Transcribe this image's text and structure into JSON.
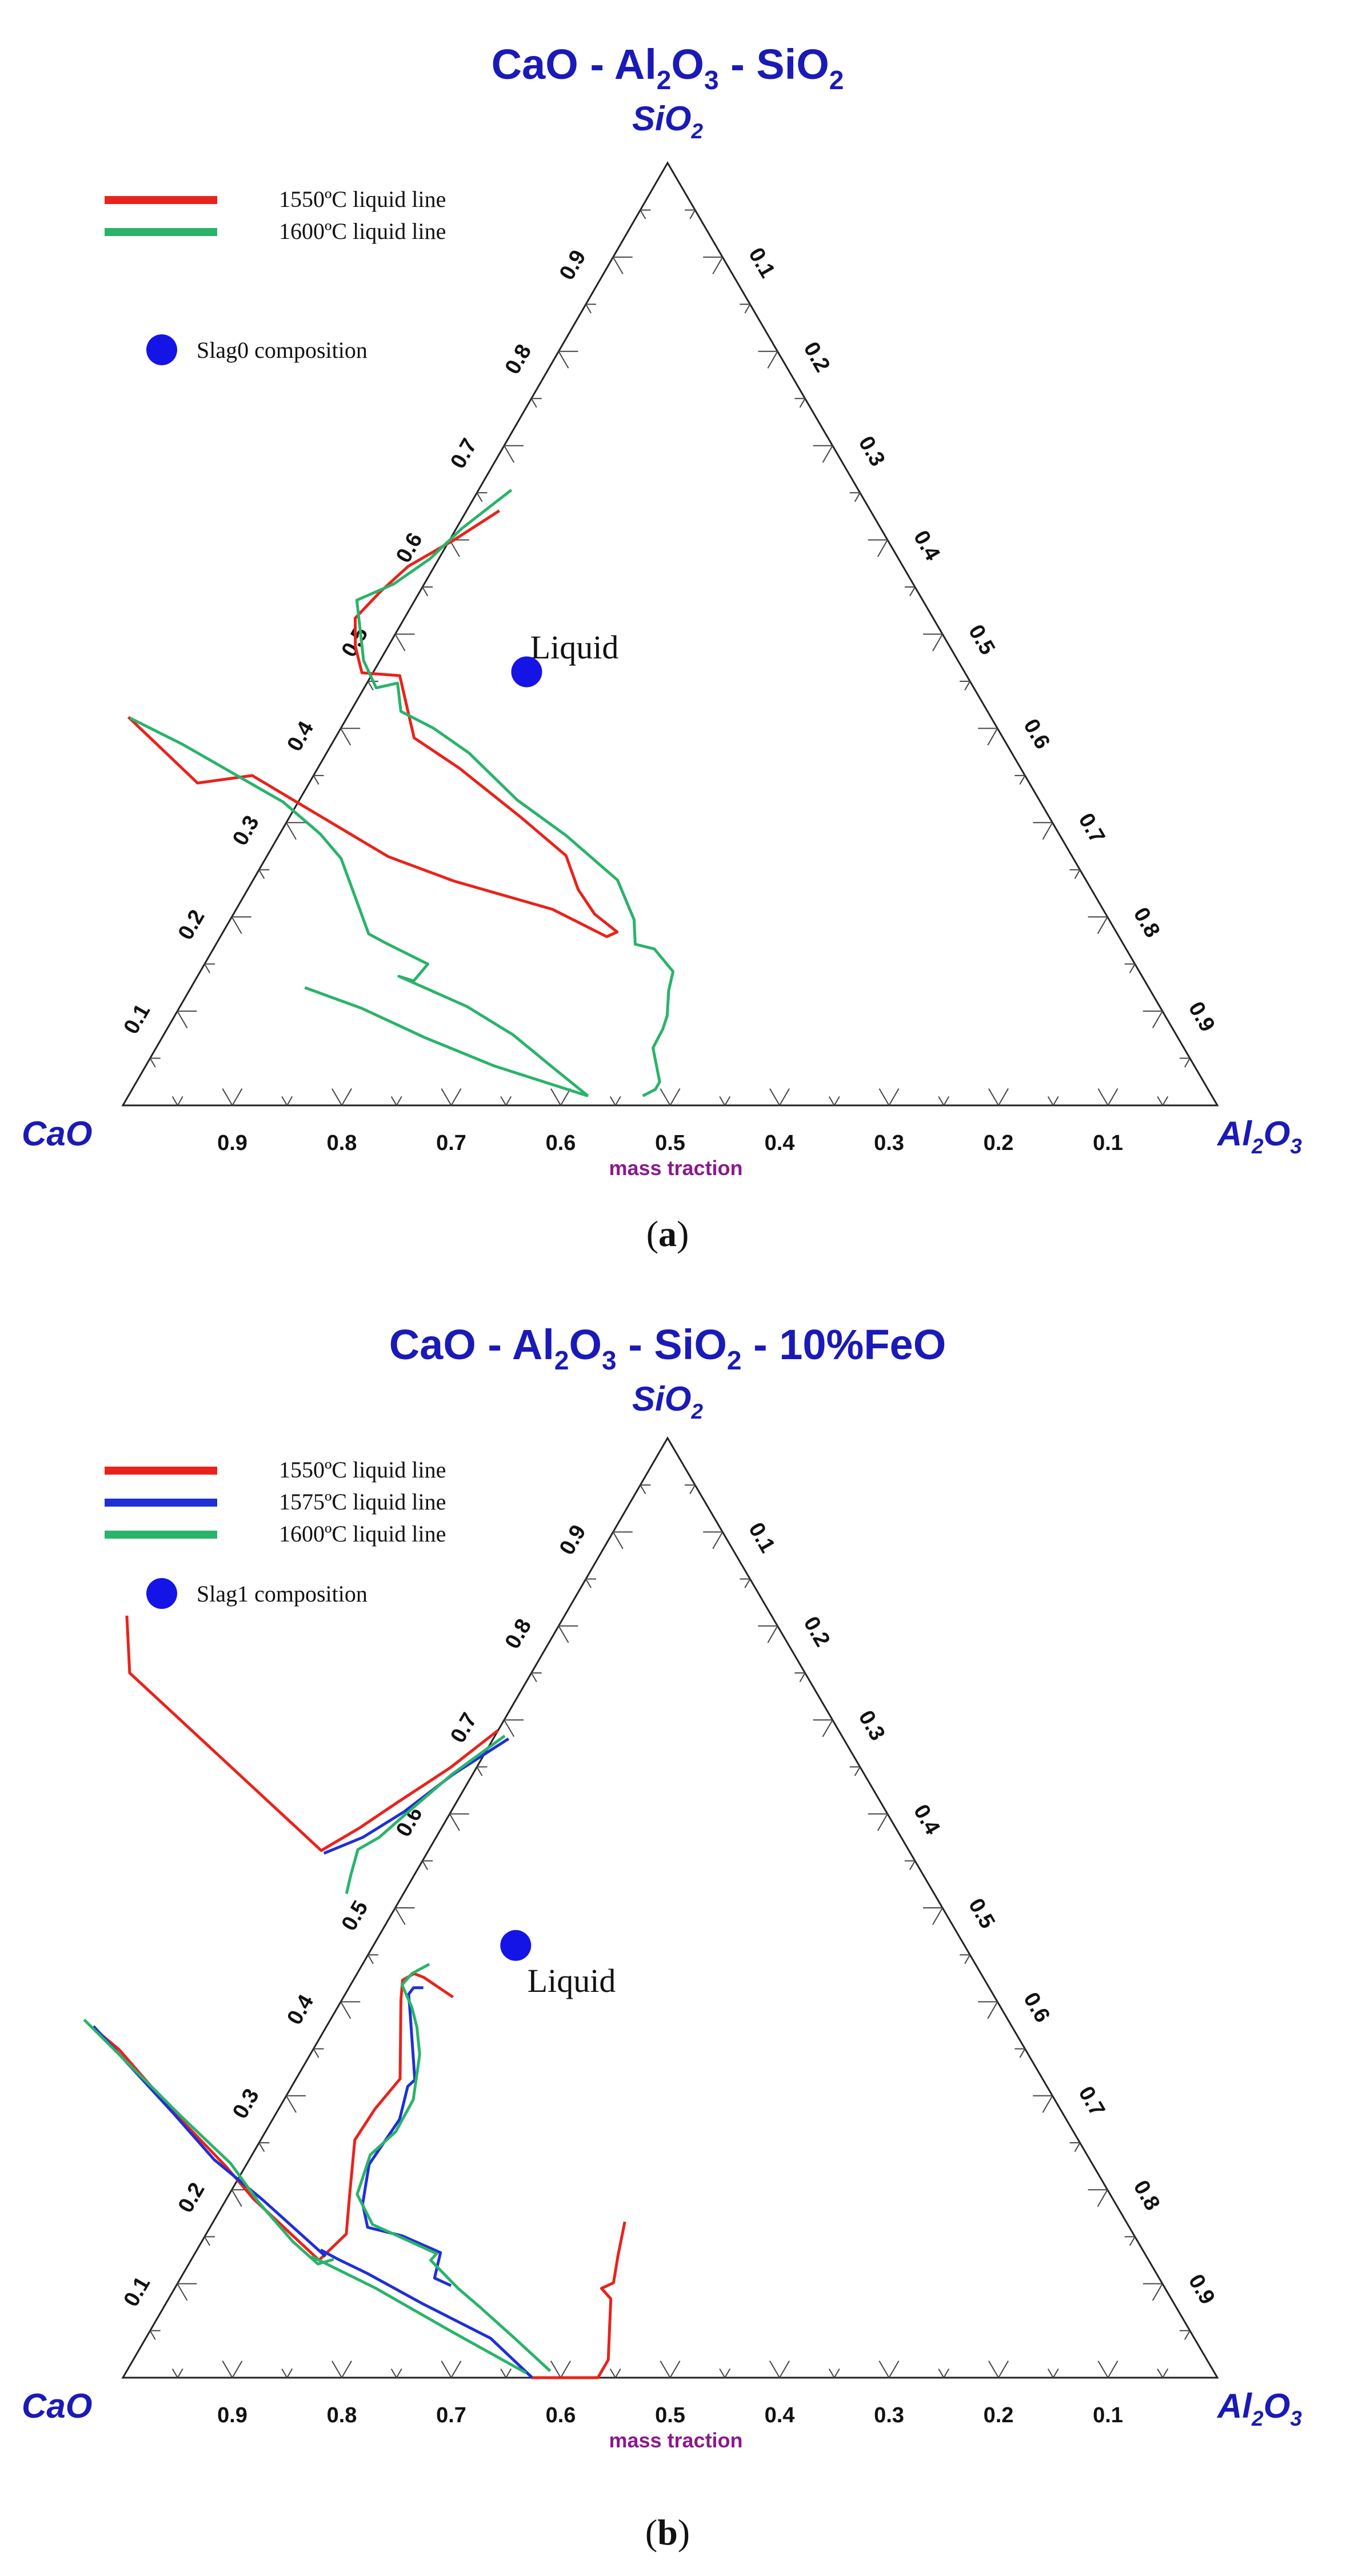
{
  "chart_data": [
    {
      "type": "ternary",
      "caption": "(a)",
      "title_parts": [
        "CaO - Al",
        "2",
        "O",
        "3",
        " - SiO",
        "2"
      ],
      "apex": {
        "top": "SiO2",
        "left": "CaO",
        "right": "Al2O3"
      },
      "apex_labels": {
        "top": [
          "SiO",
          "2"
        ],
        "left": [
          "CaO",
          ""
        ],
        "right": [
          "Al",
          "2",
          "O",
          "3"
        ]
      },
      "axis_title": "mass traction",
      "bottom_ticks": [
        "0.9",
        "0.8",
        "0.7",
        "0.6",
        "0.5",
        "0.4",
        "0.3",
        "0.2",
        "0.1"
      ],
      "left_ticks": [
        "0.1",
        "0.2",
        "0.3",
        "0.4",
        "0.5",
        "0.6",
        "0.7",
        "0.8",
        "0.9"
      ],
      "right_ticks": [
        "0.1",
        "0.2",
        "0.3",
        "0.4",
        "0.5",
        "0.6",
        "0.7",
        "0.8",
        "0.9"
      ],
      "region_label": "Liquid",
      "legend": [
        {
          "label": "1550ºC liquid line",
          "color": "#e8231c"
        },
        {
          "label": "1600ºC liquid line",
          "color": "#2ab36a"
        }
      ],
      "point": {
        "label": "Slag0 composition",
        "color": "#1414e6",
        "CaO": 0.4,
        "SiO2": 0.46
      },
      "series": [
        {
          "name": "1550ºC liquid line",
          "color": "#e8231c",
          "segments": [
            [
              [
                0.339,
                0.631
              ],
              [
                0.396,
                0.6
              ],
              [
                0.452,
                0.572
              ],
              [
                0.491,
                0.545
              ],
              [
                0.528,
                0.517
              ],
              [
                0.543,
                0.487
              ],
              [
                0.551,
                0.459
              ],
              [
                0.518,
                0.456
              ],
              [
                0.538,
                0.39
              ],
              [
                0.513,
                0.358
              ],
              [
                0.483,
                0.306
              ],
              [
                0.462,
                0.265
              ],
              [
                0.469,
                0.229
              ],
              [
                0.467,
                0.203
              ],
              [
                0.456,
                0.184
              ],
              [
                0.468,
                0.179
              ],
              [
                0.503,
                0.208
              ],
              [
                0.578,
                0.238
              ],
              [
                0.625,
                0.264
              ],
              [
                0.706,
                0.35
              ],
              [
                0.76,
                0.342
              ],
              [
                0.788,
                0.412
              ]
            ]
          ]
        },
        {
          "name": "1600ºC liquid line",
          "color": "#2ab36a",
          "segments": [
            [
              [
                0.317,
                0.653
              ],
              [
                0.383,
                0.612
              ],
              [
                0.428,
                0.58
              ],
              [
                0.475,
                0.553
              ],
              [
                0.517,
                0.536
              ],
              [
                0.532,
                0.499
              ],
              [
                0.543,
                0.472
              ],
              [
                0.546,
                0.443
              ],
              [
                0.524,
                0.448
              ],
              [
                0.536,
                0.418
              ],
              [
                0.515,
                0.4
              ],
              [
                0.496,
                0.374
              ],
              [
                0.477,
                0.324
              ],
              [
                0.451,
                0.286
              ],
              [
                0.428,
                0.239
              ],
              [
                0.434,
                0.197
              ],
              [
                0.446,
                0.171
              ],
              [
                0.431,
                0.166
              ],
              [
                0.426,
                0.142
              ],
              [
                0.44,
                0.122
              ],
              [
                0.455,
                0.095
              ],
              [
                0.466,
                0.081
              ],
              [
                0.485,
                0.061
              ],
              [
                0.497,
                0.025
              ],
              [
                0.505,
                0.017
              ],
              [
                0.52,
                0.01
              ]
            ],
            [
              [
                0.787,
                0.411
              ],
              [
                0.753,
                0.383
              ],
              [
                0.692,
                0.322
              ],
              [
                0.675,
                0.288
              ],
              [
                0.669,
                0.262
              ],
              [
                0.684,
                0.182
              ],
              [
                0.673,
                0.172
              ],
              [
                0.646,
                0.15
              ],
              [
                0.668,
                0.132
              ],
              [
                0.679,
                0.137
              ],
              [
                0.633,
                0.105
              ],
              [
                0.606,
                0.075
              ],
              [
                0.588,
                0.042
              ],
              [
                0.57,
                0.01
              ]
            ],
            [
              [
                0.771,
                0.125
              ],
              [
                0.73,
                0.103
              ],
              [
                0.688,
                0.072
              ],
              [
                0.64,
                0.042
              ],
              [
                0.57,
                0.01
              ]
            ]
          ]
        }
      ]
    },
    {
      "type": "ternary",
      "caption": "(b)",
      "title_parts": [
        "CaO - Al",
        "2",
        "O",
        "3",
        " - SiO",
        "2",
        " - 10%FeO"
      ],
      "apex": {
        "top": "SiO2",
        "left": "CaO",
        "right": "Al2O3"
      },
      "apex_labels": {
        "top": [
          "SiO",
          "2"
        ],
        "left": [
          "CaO",
          ""
        ],
        "right": [
          "Al",
          "2",
          "O",
          "3"
        ]
      },
      "axis_title": "mass traction",
      "bottom_ticks": [
        "0.9",
        "0.8",
        "0.7",
        "0.6",
        "0.5",
        "0.4",
        "0.3",
        "0.2",
        "0.1"
      ],
      "left_ticks": [
        "0.1",
        "0.2",
        "0.3",
        "0.4",
        "0.5",
        "0.6",
        "0.7",
        "0.8",
        "0.9"
      ],
      "right_ticks": [
        "0.1",
        "0.2",
        "0.3",
        "0.4",
        "0.5",
        "0.6",
        "0.7",
        "0.8",
        "0.9"
      ],
      "region_label": "Liquid",
      "legend": [
        {
          "label": "1550ºC liquid line",
          "color": "#e8231c"
        },
        {
          "label": "1575ºC liquid line",
          "color": "#1f2fd6"
        },
        {
          "label": "1600ºC liquid line",
          "color": "#2ab36a"
        }
      ],
      "point": {
        "label": "Slag1 composition",
        "color": "#1414e6",
        "CaO": 0.41,
        "SiO2": 0.46
      },
      "series": [
        {
          "name": "1550ºC liquid line",
          "color": "#e8231c",
          "segments": [
            [
              [
                0.311,
                0.689
              ],
              [
                0.375,
                0.649
              ],
              [
                0.442,
                0.612
              ],
              [
                0.49,
                0.585
              ],
              [
                0.537,
                0.561
              ],
              [
                0.617,
                0.75
              ],
              [
                0.589,
                0.811
              ]
            ],
            [
              [
                0.495,
                0.405
              ],
              [
                0.511,
                0.426
              ],
              [
                0.518,
                0.43
              ],
              [
                0.532,
                0.423
              ],
              [
                0.544,
                0.402
              ],
              [
                0.587,
                0.318
              ],
              [
                0.626,
                0.286
              ],
              [
                0.661,
                0.253
              ],
              [
                0.696,
                0.193
              ],
              [
                0.719,
                0.153
              ],
              [
                0.758,
                0.125
              ],
              [
                0.785,
                0.19
              ],
              [
                0.793,
                0.225
              ],
              [
                0.812,
                0.284
              ],
              [
                0.828,
                0.349
              ],
              [
                0.839,
                0.37
              ]
            ],
            [
              [
                0.458,
                0.166
              ],
              [
                0.483,
                0.129
              ],
              [
                0.501,
                0.101
              ],
              [
                0.515,
                0.095
              ],
              [
                0.512,
                0.084
              ],
              [
                0.547,
                0.019
              ],
              [
                0.566,
                0.0
              ],
              [
                0.627,
                0.0
              ]
            ]
          ]
        },
        {
          "name": "1575ºC liquid line",
          "color": "#1f2fd6",
          "segments": [
            [
              [
                0.306,
                0.68
              ],
              [
                0.376,
                0.642
              ],
              [
                0.441,
                0.602
              ],
              [
                0.492,
                0.575
              ],
              [
                0.536,
                0.558
              ]
            ],
            [
              [
                0.517,
                0.415
              ],
              [
                0.526,
                0.415
              ],
              [
                0.534,
                0.408
              ],
              [
                0.54,
                0.394
              ],
              [
                0.574,
                0.317
              ],
              [
                0.584,
                0.31
              ],
              [
                0.609,
                0.275
              ],
              [
                0.661,
                0.227
              ],
              [
                0.688,
                0.185
              ],
              [
                0.696,
                0.16
              ],
              [
                0.669,
                0.151
              ],
              [
                0.643,
                0.133
              ],
              [
                0.662,
                0.106
              ],
              [
                0.651,
                0.098
              ]
            ],
            [
              [
                0.751,
                0.136
              ],
              [
                0.74,
                0.126
              ],
              [
                0.721,
                0.111
              ],
              [
                0.687,
                0.079
              ],
              [
                0.643,
                0.042
              ],
              [
                0.626,
                0.0
              ]
            ],
            [
              [
                0.839,
                0.374
              ],
              [
                0.813,
                0.283
              ],
              [
                0.8,
                0.232
              ],
              [
                0.777,
                0.189
              ],
              [
                0.75,
                0.129
              ]
            ]
          ]
        },
        {
          "name": "1600ºC liquid line",
          "color": "#2ab36a",
          "segments": [
            [
              [
                0.308,
                0.683
              ],
              [
                0.377,
                0.642
              ],
              [
                0.44,
                0.6
              ],
              [
                0.477,
                0.575
              ],
              [
                0.503,
                0.562
              ],
              [
                0.523,
                0.535
              ],
              [
                0.537,
                0.515
              ]
            ],
            [
              [
                0.499,
                0.44
              ],
              [
                0.52,
                0.43
              ],
              [
                0.535,
                0.418
              ],
              [
                0.538,
                0.394
              ],
              [
                0.544,
                0.373
              ],
              [
                0.556,
                0.344
              ],
              [
                0.586,
                0.296
              ],
              [
                0.619,
                0.262
              ],
              [
                0.655,
                0.237
              ],
              [
                0.688,
                0.195
              ],
              [
                0.69,
                0.163
              ],
              [
                0.647,
                0.132
              ],
              [
                0.656,
                0.125
              ],
              [
                0.646,
                0.095
              ],
              [
                0.636,
                0.075
              ],
              [
                0.621,
                0.042
              ],
              [
                0.606,
                0.007
              ]
            ],
            [
              [
                0.844,
                0.381
              ],
              [
                0.817,
                0.306
              ],
              [
                0.807,
                0.278
              ],
              [
                0.787,
                0.228
              ],
              [
                0.782,
                0.186
              ],
              [
                0.772,
                0.145
              ],
              [
                0.761,
                0.121
              ],
              [
                0.744,
                0.126
              ]
            ],
            [
              [
                0.763,
                0.129
              ],
              [
                0.721,
                0.095
              ],
              [
                0.676,
                0.05
              ],
              [
                0.629,
                0.005
              ]
            ]
          ]
        }
      ]
    }
  ]
}
